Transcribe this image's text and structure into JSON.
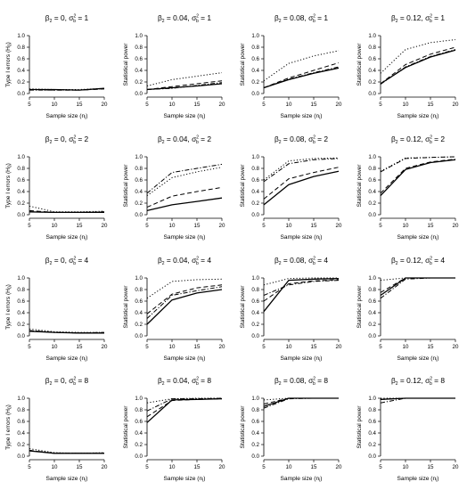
{
  "figure": {
    "xlabel_main": "Sample size (n",
    "xlabel_sub": "i",
    "xlabel_close": ")",
    "ylabel_type1_main": "Type I errors (H",
    "ylabel_type1_sub": "0",
    "ylabel_type1_close": ")",
    "ylabel_power": "Statistical power"
  },
  "chart_data": [
    {
      "type": "line",
      "title_beta": "β",
      "title_beta_sub": "2",
      "title_beta_val": " = 0, σ",
      "title_sigma_sup": "2",
      "title_sigma_sub": "b",
      "title_sigma_val": " = 1",
      "ylabel": "Type I errors (H0)",
      "xlabel": "Sample size (ni)",
      "x": [
        5,
        10,
        15,
        20
      ],
      "ylim": [
        0,
        1.0
      ],
      "yticks": [
        0,
        0.2,
        0.4,
        0.6,
        0.8,
        1.0
      ],
      "xticks": [
        5,
        10,
        15,
        20
      ],
      "series": [
        {
          "style": "solid",
          "values": [
            0.07,
            0.07,
            0.06,
            0.09
          ]
        },
        {
          "style": "dashed",
          "values": [
            0.07,
            0.06,
            0.06,
            0.08
          ]
        },
        {
          "style": "dotted",
          "values": [
            0.08,
            0.07,
            0.07,
            0.09
          ]
        },
        {
          "style": "dashdot",
          "values": [
            0.06,
            0.06,
            0.06,
            0.08
          ]
        }
      ]
    },
    {
      "type": "line",
      "title_beta": "β",
      "title_beta_sub": "2",
      "title_beta_val": " = 0.04, σ",
      "title_sigma_sup": "2",
      "title_sigma_sub": "b",
      "title_sigma_val": " = 1",
      "ylabel": "Statistical power",
      "xlabel": "Sample size (ni)",
      "x": [
        5,
        10,
        15,
        20
      ],
      "ylim": [
        0,
        1.0
      ],
      "yticks": [
        0,
        0.2,
        0.4,
        0.6,
        0.8,
        1.0
      ],
      "xticks": [
        5,
        10,
        15,
        20
      ],
      "series": [
        {
          "style": "solid",
          "values": [
            0.07,
            0.1,
            0.13,
            0.17
          ]
        },
        {
          "style": "dashed",
          "values": [
            0.07,
            0.12,
            0.17,
            0.22
          ]
        },
        {
          "style": "dotted",
          "values": [
            0.13,
            0.24,
            0.3,
            0.36
          ]
        },
        {
          "style": "dashdot",
          "values": [
            0.07,
            0.09,
            0.14,
            0.19
          ]
        }
      ]
    },
    {
      "type": "line",
      "title_beta": "β",
      "title_beta_sub": "2",
      "title_beta_val": " = 0.08, σ",
      "title_sigma_sup": "2",
      "title_sigma_sub": "b",
      "title_sigma_val": " = 1",
      "ylabel": "Statistical power",
      "xlabel": "Sample size (ni)",
      "x": [
        5,
        10,
        15,
        20
      ],
      "ylim": [
        0,
        1.0
      ],
      "yticks": [
        0,
        0.2,
        0.4,
        0.6,
        0.8,
        1.0
      ],
      "xticks": [
        5,
        10,
        15,
        20
      ],
      "series": [
        {
          "style": "solid",
          "values": [
            0.1,
            0.24,
            0.35,
            0.44
          ]
        },
        {
          "style": "dashed",
          "values": [
            0.1,
            0.27,
            0.4,
            0.53
          ]
        },
        {
          "style": "dotted",
          "values": [
            0.22,
            0.52,
            0.65,
            0.74
          ]
        },
        {
          "style": "dashdot",
          "values": [
            0.1,
            0.25,
            0.36,
            0.46
          ]
        }
      ]
    },
    {
      "type": "line",
      "title_beta": "β",
      "title_beta_sub": "2",
      "title_beta_val": " = 0.12, σ",
      "title_sigma_sup": "2",
      "title_sigma_sub": "b",
      "title_sigma_val": " = 1",
      "ylabel": "Statistical power",
      "xlabel": "Sample size (ni)",
      "x": [
        5,
        10,
        15,
        20
      ],
      "ylim": [
        0,
        1.0
      ],
      "yticks": [
        0,
        0.2,
        0.4,
        0.6,
        0.8,
        1.0
      ],
      "xticks": [
        5,
        10,
        15,
        20
      ],
      "series": [
        {
          "style": "solid",
          "values": [
            0.17,
            0.45,
            0.63,
            0.75
          ]
        },
        {
          "style": "dashed",
          "values": [
            0.17,
            0.5,
            0.68,
            0.8
          ]
        },
        {
          "style": "dotted",
          "values": [
            0.35,
            0.76,
            0.88,
            0.93
          ]
        },
        {
          "style": "dashdot",
          "values": [
            0.16,
            0.46,
            0.64,
            0.76
          ]
        }
      ]
    },
    {
      "type": "line",
      "title_beta": "β",
      "title_beta_sub": "2",
      "title_beta_val": " = 0, σ",
      "title_sigma_sup": "2",
      "title_sigma_sub": "b",
      "title_sigma_val": " = 2",
      "ylabel": "Type I errors (H0)",
      "xlabel": "Sample size (ni)",
      "x": [
        5,
        10,
        15,
        20
      ],
      "ylim": [
        0,
        1.0
      ],
      "yticks": [
        0,
        0.2,
        0.4,
        0.6,
        0.8,
        1.0
      ],
      "xticks": [
        5,
        10,
        15,
        20
      ],
      "series": [
        {
          "style": "solid",
          "values": [
            0.05,
            0.04,
            0.04,
            0.04
          ]
        },
        {
          "style": "dashed",
          "values": [
            0.07,
            0.04,
            0.04,
            0.05
          ]
        },
        {
          "style": "dotted",
          "values": [
            0.15,
            0.05,
            0.05,
            0.06
          ]
        },
        {
          "style": "dashdot",
          "values": [
            0.05,
            0.04,
            0.04,
            0.05
          ]
        }
      ]
    },
    {
      "type": "line",
      "title_beta": "β",
      "title_beta_sub": "2",
      "title_beta_val": " = 0.04, σ",
      "title_sigma_sup": "2",
      "title_sigma_sub": "b",
      "title_sigma_val": " = 2",
      "ylabel": "Statistical power",
      "xlabel": "Sample size (ni)",
      "x": [
        5,
        10,
        15,
        20
      ],
      "ylim": [
        0,
        1.0
      ],
      "yticks": [
        0,
        0.2,
        0.4,
        0.6,
        0.8,
        1.0
      ],
      "xticks": [
        5,
        10,
        15,
        20
      ],
      "series": [
        {
          "style": "solid",
          "values": [
            0.07,
            0.17,
            0.23,
            0.29
          ]
        },
        {
          "style": "dashed",
          "values": [
            0.13,
            0.32,
            0.4,
            0.47
          ]
        },
        {
          "style": "dotted",
          "values": [
            0.33,
            0.64,
            0.74,
            0.82
          ]
        },
        {
          "style": "dashdot",
          "values": [
            0.37,
            0.73,
            0.8,
            0.87
          ]
        }
      ]
    },
    {
      "type": "line",
      "title_beta": "β",
      "title_beta_sub": "2",
      "title_beta_val": " = 0.08, σ",
      "title_sigma_sup": "2",
      "title_sigma_sub": "b",
      "title_sigma_val": " = 2",
      "ylabel": "Statistical power",
      "xlabel": "Sample size (ni)",
      "x": [
        5,
        10,
        15,
        20
      ],
      "ylim": [
        0,
        1.0
      ],
      "yticks": [
        0,
        0.2,
        0.4,
        0.6,
        0.8,
        1.0
      ],
      "xticks": [
        5,
        10,
        15,
        20
      ],
      "series": [
        {
          "style": "solid",
          "values": [
            0.17,
            0.52,
            0.66,
            0.75
          ]
        },
        {
          "style": "dashed",
          "values": [
            0.27,
            0.62,
            0.73,
            0.82
          ]
        },
        {
          "style": "dotted",
          "values": [
            0.6,
            0.93,
            0.97,
            0.98
          ]
        },
        {
          "style": "dashdot",
          "values": [
            0.57,
            0.88,
            0.95,
            0.97
          ]
        }
      ]
    },
    {
      "type": "line",
      "title_beta": "β",
      "title_beta_sub": "2",
      "title_beta_val": " = 0.12, σ",
      "title_sigma_sup": "2",
      "title_sigma_sub": "b",
      "title_sigma_val": " = 2",
      "ylabel": "Statistical power",
      "xlabel": "Sample size (ni)",
      "x": [
        5,
        10,
        15,
        20
      ],
      "ylim": [
        0,
        1.0
      ],
      "yticks": [
        0,
        0.2,
        0.4,
        0.6,
        0.8,
        1.0
      ],
      "xticks": [
        5,
        10,
        15,
        20
      ],
      "series": [
        {
          "style": "solid",
          "values": [
            0.33,
            0.78,
            0.9,
            0.95
          ]
        },
        {
          "style": "dashed",
          "values": [
            0.37,
            0.8,
            0.91,
            0.96
          ]
        },
        {
          "style": "dotted",
          "values": [
            0.75,
            0.98,
            0.99,
            1.0
          ]
        },
        {
          "style": "dashdot",
          "values": [
            0.74,
            0.97,
            0.99,
            1.0
          ]
        }
      ]
    },
    {
      "type": "line",
      "title_beta": "β",
      "title_beta_sub": "2",
      "title_beta_val": " = 0, σ",
      "title_sigma_sup": "2",
      "title_sigma_sub": "b",
      "title_sigma_val": " = 4",
      "ylabel": "Type I errors (H0)",
      "xlabel": "Sample size (ni)",
      "x": [
        5,
        10,
        15,
        20
      ],
      "ylim": [
        0,
        1.0
      ],
      "yticks": [
        0,
        0.2,
        0.4,
        0.6,
        0.8,
        1.0
      ],
      "xticks": [
        5,
        10,
        15,
        20
      ],
      "series": [
        {
          "style": "solid",
          "values": [
            0.08,
            0.06,
            0.05,
            0.05
          ]
        },
        {
          "style": "dashed",
          "values": [
            0.09,
            0.06,
            0.05,
            0.06
          ]
        },
        {
          "style": "dotted",
          "values": [
            0.12,
            0.07,
            0.06,
            0.06
          ]
        },
        {
          "style": "dashdot",
          "values": [
            0.09,
            0.06,
            0.05,
            0.05
          ]
        }
      ]
    },
    {
      "type": "line",
      "title_beta": "β",
      "title_beta_sub": "2",
      "title_beta_val": " = 0.04, σ",
      "title_sigma_sup": "2",
      "title_sigma_sub": "b",
      "title_sigma_val": " = 4",
      "ylabel": "Statistical power",
      "xlabel": "Sample size (ni)",
      "x": [
        5,
        10,
        15,
        20
      ],
      "ylim": [
        0,
        1.0
      ],
      "yticks": [
        0,
        0.2,
        0.4,
        0.6,
        0.8,
        1.0
      ],
      "xticks": [
        5,
        10,
        15,
        20
      ],
      "series": [
        {
          "style": "solid",
          "values": [
            0.2,
            0.62,
            0.74,
            0.8
          ]
        },
        {
          "style": "dashed",
          "values": [
            0.38,
            0.72,
            0.83,
            0.88
          ]
        },
        {
          "style": "dotted",
          "values": [
            0.65,
            0.94,
            0.97,
            0.98
          ]
        },
        {
          "style": "dashdot",
          "values": [
            0.3,
            0.7,
            0.78,
            0.85
          ]
        }
      ]
    },
    {
      "type": "line",
      "title_beta": "β",
      "title_beta_sub": "2",
      "title_beta_val": " = 0.08, σ",
      "title_sigma_sup": "2",
      "title_sigma_sub": "b",
      "title_sigma_val": " = 4",
      "ylabel": "Statistical power",
      "xlabel": "Sample size (ni)",
      "x": [
        5,
        10,
        15,
        20
      ],
      "ylim": [
        0,
        1.0
      ],
      "yticks": [
        0,
        0.2,
        0.4,
        0.6,
        0.8,
        1.0
      ],
      "xticks": [
        5,
        10,
        15,
        20
      ],
      "series": [
        {
          "style": "solid",
          "values": [
            0.42,
            0.96,
            0.98,
            0.99
          ]
        },
        {
          "style": "dashed",
          "values": [
            0.6,
            0.9,
            0.95,
            0.97
          ]
        },
        {
          "style": "dotted",
          "values": [
            0.88,
            0.99,
            1.0,
            1.0
          ]
        },
        {
          "style": "dashdot",
          "values": [
            0.7,
            0.88,
            0.94,
            0.96
          ]
        }
      ]
    },
    {
      "type": "line",
      "title_beta": "β",
      "title_beta_sub": "2",
      "title_beta_val": " = 0.12, σ",
      "title_sigma_sup": "2",
      "title_sigma_sub": "b",
      "title_sigma_val": " = 4",
      "ylabel": "Statistical power",
      "xlabel": "Sample size (ni)",
      "x": [
        5,
        10,
        15,
        20
      ],
      "ylim": [
        0,
        1.0
      ],
      "yticks": [
        0,
        0.2,
        0.4,
        0.6,
        0.8,
        1.0
      ],
      "xticks": [
        5,
        10,
        15,
        20
      ],
      "series": [
        {
          "style": "solid",
          "values": [
            0.7,
            1.0,
            1.0,
            1.0
          ]
        },
        {
          "style": "dashed",
          "values": [
            0.75,
            1.0,
            1.0,
            1.0
          ]
        },
        {
          "style": "dotted",
          "values": [
            0.96,
            1.0,
            1.0,
            1.0
          ]
        },
        {
          "style": "dashdot",
          "values": [
            0.65,
            0.98,
            1.0,
            1.0
          ]
        }
      ]
    },
    {
      "type": "line",
      "title_beta": "β",
      "title_beta_sub": "2",
      "title_beta_val": " = 0, σ",
      "title_sigma_sup": "2",
      "title_sigma_sub": "b",
      "title_sigma_val": " = 8",
      "ylabel": "Type I errors (H0)",
      "xlabel": "Sample size (ni)",
      "x": [
        5,
        10,
        15,
        20
      ],
      "ylim": [
        0,
        1.0
      ],
      "yticks": [
        0,
        0.2,
        0.4,
        0.6,
        0.8,
        1.0
      ],
      "xticks": [
        5,
        10,
        15,
        20
      ],
      "series": [
        {
          "style": "solid",
          "values": [
            0.09,
            0.05,
            0.05,
            0.05
          ]
        },
        {
          "style": "dashed",
          "values": [
            0.1,
            0.05,
            0.05,
            0.05
          ]
        },
        {
          "style": "dotted",
          "values": [
            0.13,
            0.06,
            0.05,
            0.06
          ]
        },
        {
          "style": "dashdot",
          "values": [
            0.1,
            0.05,
            0.05,
            0.05
          ]
        }
      ]
    },
    {
      "type": "line",
      "title_beta": "β",
      "title_beta_sub": "2",
      "title_beta_val": " = 0.04, σ",
      "title_sigma_sup": "2",
      "title_sigma_sub": "b",
      "title_sigma_val": " = 8",
      "ylabel": "Statistical power",
      "xlabel": "Sample size (ni)",
      "x": [
        5,
        10,
        15,
        20
      ],
      "ylim": [
        0,
        1.0
      ],
      "yticks": [
        0,
        0.2,
        0.4,
        0.6,
        0.8,
        1.0
      ],
      "xticks": [
        5,
        10,
        15,
        20
      ],
      "series": [
        {
          "style": "solid",
          "values": [
            0.58,
            0.97,
            0.98,
            0.99
          ]
        },
        {
          "style": "dashed",
          "values": [
            0.68,
            0.96,
            0.98,
            0.99
          ]
        },
        {
          "style": "dotted",
          "values": [
            0.92,
            0.99,
            1.0,
            1.0
          ]
        },
        {
          "style": "dashdot",
          "values": [
            0.78,
            0.99,
            0.99,
            1.0
          ]
        }
      ]
    },
    {
      "type": "line",
      "title_beta": "β",
      "title_beta_sub": "2",
      "title_beta_val": " = 0.08, σ",
      "title_sigma_sup": "2",
      "title_sigma_sub": "b",
      "title_sigma_val": " = 8",
      "ylabel": "Statistical power",
      "xlabel": "Sample size (ni)",
      "x": [
        5,
        10,
        15,
        20
      ],
      "ylim": [
        0,
        1.0
      ],
      "yticks": [
        0,
        0.2,
        0.4,
        0.6,
        0.8,
        1.0
      ],
      "xticks": [
        5,
        10,
        15,
        20
      ],
      "series": [
        {
          "style": "solid",
          "values": [
            0.86,
            1.0,
            1.0,
            1.0
          ]
        },
        {
          "style": "dashed",
          "values": [
            0.9,
            1.0,
            1.0,
            1.0
          ]
        },
        {
          "style": "dotted",
          "values": [
            0.97,
            1.0,
            1.0,
            1.0
          ]
        },
        {
          "style": "dashdot",
          "values": [
            0.83,
            0.99,
            1.0,
            1.0
          ]
        }
      ]
    },
    {
      "type": "line",
      "title_beta": "β",
      "title_beta_sub": "2",
      "title_beta_val": " = 0.12, σ",
      "title_sigma_sup": "2",
      "title_sigma_sub": "b",
      "title_sigma_val": " = 8",
      "ylabel": "Statistical power",
      "xlabel": "Sample size (ni)",
      "x": [
        5,
        10,
        15,
        20
      ],
      "ylim": [
        0,
        1.0
      ],
      "yticks": [
        0,
        0.2,
        0.4,
        0.6,
        0.8,
        1.0
      ],
      "xticks": [
        5,
        10,
        15,
        20
      ],
      "series": [
        {
          "style": "solid",
          "values": [
            0.98,
            1.0,
            1.0,
            1.0
          ]
        },
        {
          "style": "dashed",
          "values": [
            0.98,
            1.0,
            1.0,
            1.0
          ]
        },
        {
          "style": "dotted",
          "values": [
            1.0,
            1.0,
            1.0,
            1.0
          ]
        },
        {
          "style": "dashdot",
          "values": [
            0.92,
            1.0,
            1.0,
            1.0
          ]
        }
      ]
    }
  ]
}
